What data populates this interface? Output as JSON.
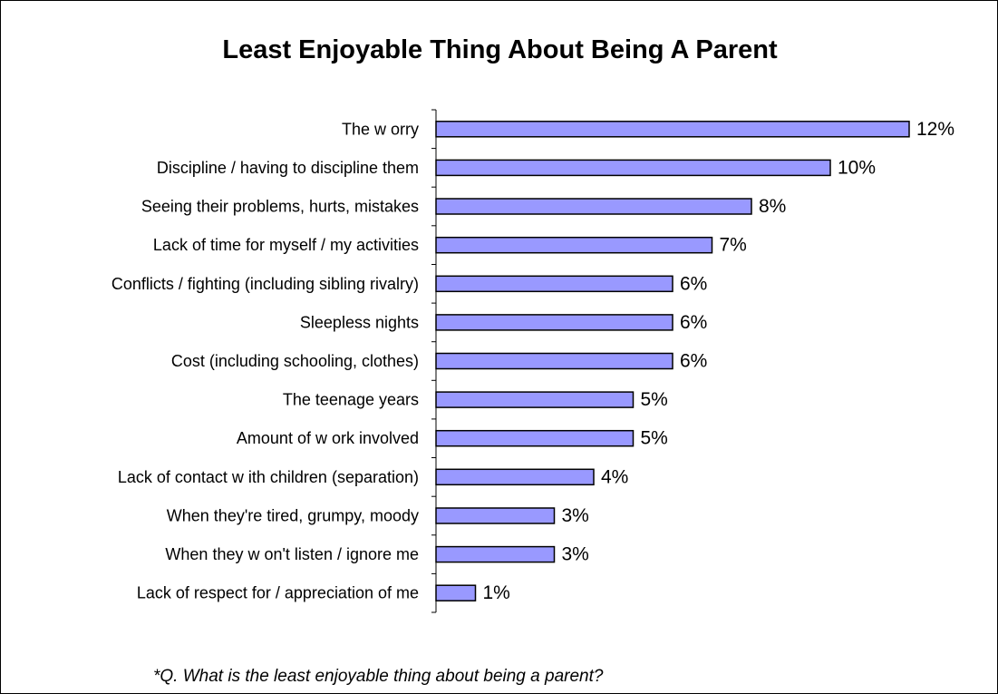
{
  "chart_data": {
    "type": "bar",
    "orientation": "horizontal",
    "title": "Least Enjoyable Thing About Being A Parent",
    "categories": [
      "The w orry",
      "Discipline / having to discipline them",
      "Seeing their problems, hurts, mistakes",
      "Lack of time for myself / my activities",
      "Conflicts / fighting (including sibling rivalry)",
      "Sleepless nights",
      "Cost (including schooling, clothes)",
      "The teenage years",
      "Amount of w ork involved",
      "Lack of contact w ith children (separation)",
      "When they're tired, grumpy, moody",
      "When they w on't listen / ignore me",
      "Lack of respect for / appreciation of me"
    ],
    "values": [
      12,
      10,
      8,
      7,
      6,
      6,
      6,
      5,
      5,
      4,
      3,
      3,
      1
    ],
    "value_labels": [
      "12%",
      "10%",
      "8%",
      "7%",
      "6%",
      "6%",
      "6%",
      "5%",
      "5%",
      "4%",
      "3%",
      "3%",
      "1%"
    ],
    "xlim": [
      0,
      12
    ],
    "bar_color": "#9999ff",
    "bar_outline": "#000000",
    "grid": false,
    "legend": "none",
    "footnote": "*Q. What is the least enjoyable thing about being a parent?"
  }
}
